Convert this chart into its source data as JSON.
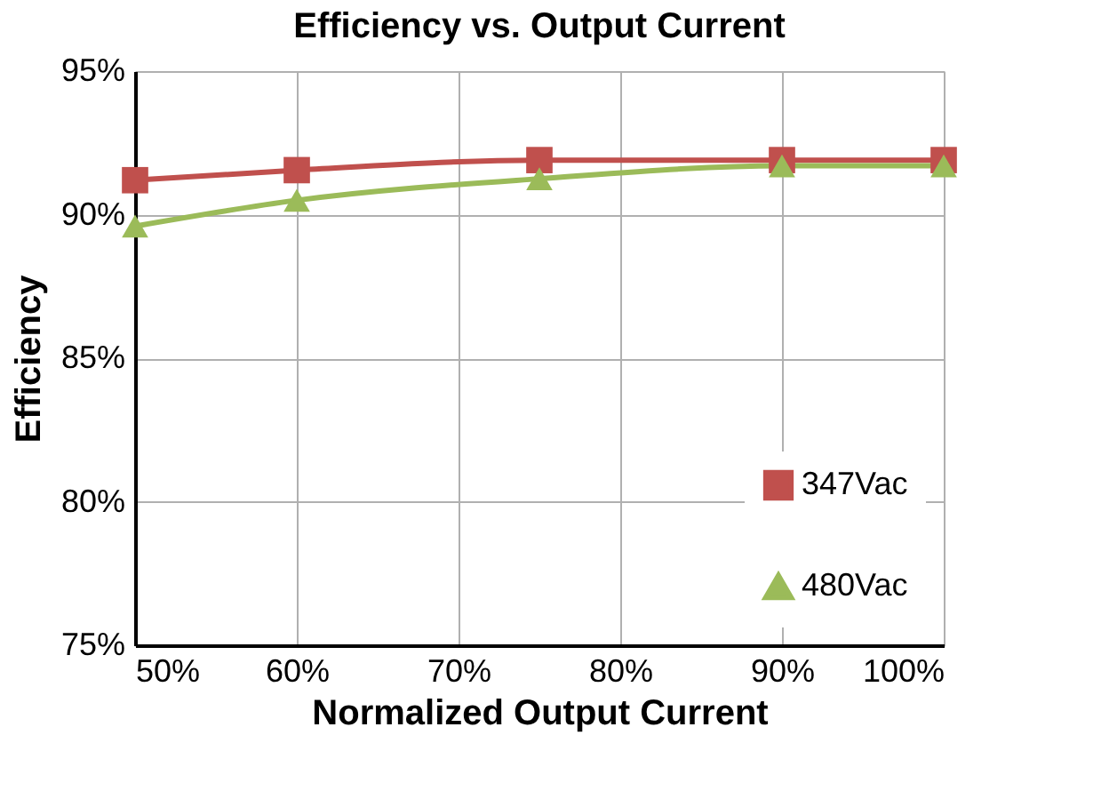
{
  "chart_data": {
    "type": "line",
    "title": "Efficiency vs. Output Current",
    "xlabel": "Normalized Output Current",
    "ylabel": "Efficiency",
    "x": [
      50,
      60,
      75,
      90,
      100
    ],
    "series": [
      {
        "name": "347Vac",
        "color": "#c0504d",
        "marker": "square",
        "values": [
          91.2,
          91.55,
          91.9,
          91.9,
          91.9
        ]
      },
      {
        "name": "480Vac",
        "color": "#9bbb59",
        "marker": "triangle",
        "values": [
          89.6,
          90.5,
          91.25,
          91.7,
          91.7
        ]
      }
    ],
    "xlim": [
      50,
      100
    ],
    "xticks": [
      {
        "value": 50,
        "label": "50%"
      },
      {
        "value": 60,
        "label": "60%"
      },
      {
        "value": 70,
        "label": "70%"
      },
      {
        "value": 80,
        "label": "80%"
      },
      {
        "value": 90,
        "label": "90%"
      },
      {
        "value": 100,
        "label": "100%"
      }
    ],
    "ylim": [
      75,
      95
    ],
    "yticks": [
      {
        "value": 75,
        "label": "75%"
      },
      {
        "value": 80,
        "label": "80%"
      },
      {
        "value": 85,
        "label": "85%"
      },
      {
        "value": 90,
        "label": "90%"
      },
      {
        "value": 95,
        "label": "95%"
      }
    ],
    "grid": true,
    "legend": "bottom right",
    "line_style": "solid"
  }
}
